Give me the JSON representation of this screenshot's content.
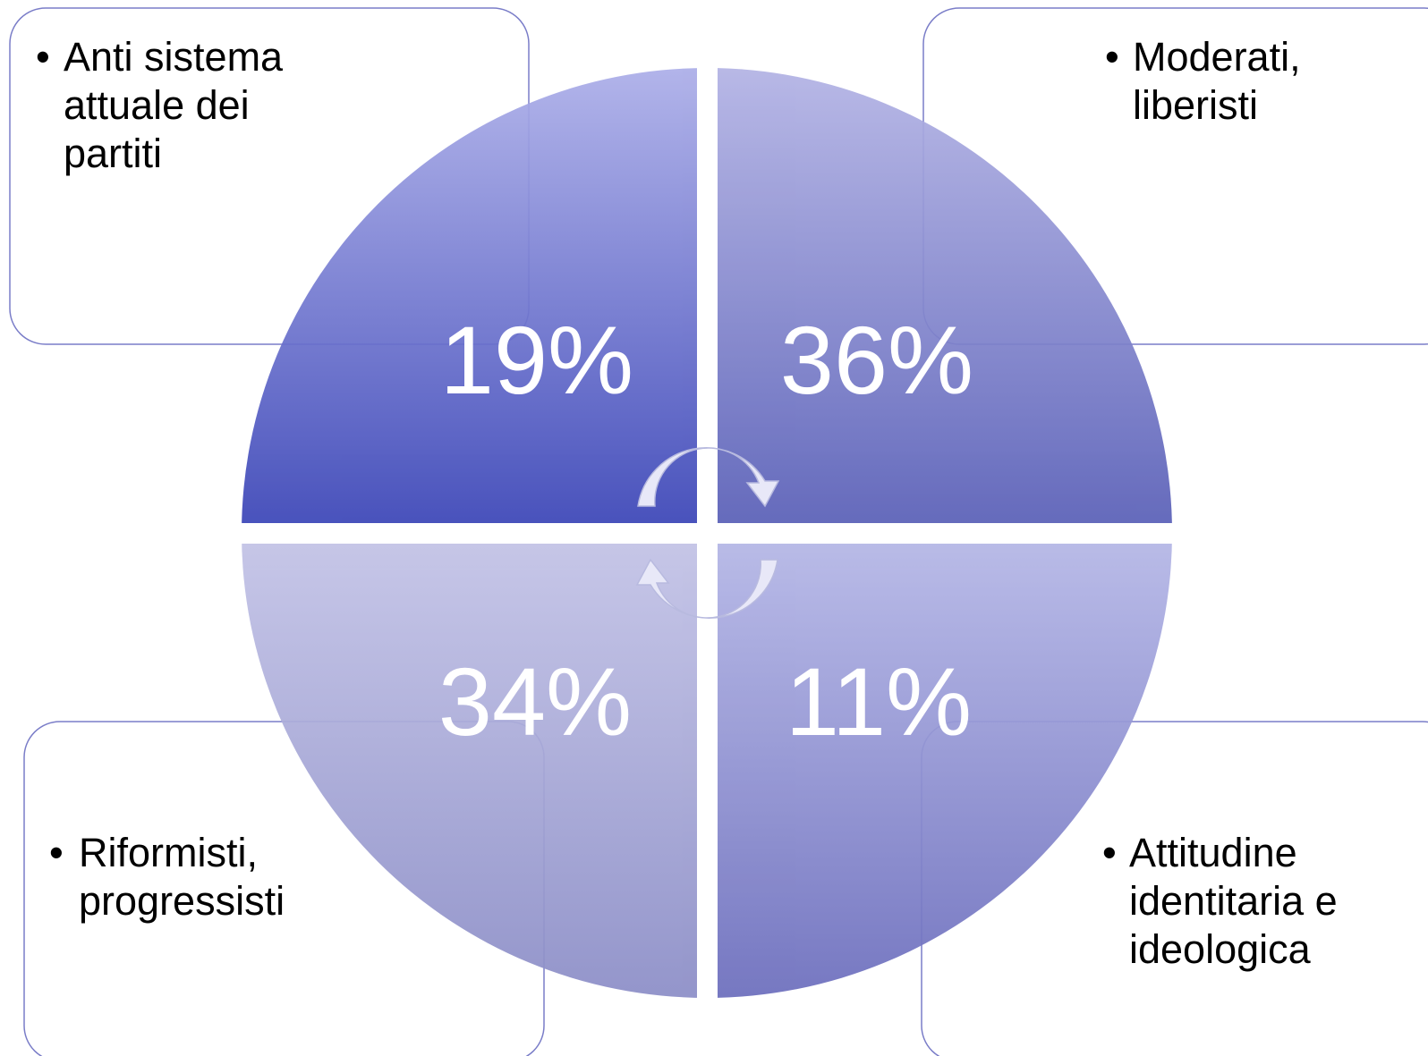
{
  "quadrants": [
    {
      "lines": [
        "Anti sistema",
        "attuale dei",
        "partiti"
      ],
      "value": "19%"
    },
    {
      "lines": [
        "Moderati,",
        "liberisti"
      ],
      "value": "36%"
    },
    {
      "lines": [
        "Riformisti,",
        "progressisti"
      ],
      "value": "34%"
    },
    {
      "lines": [
        "Attitudine",
        "identitaria e",
        "ideologica"
      ],
      "value": "11%"
    }
  ]
}
